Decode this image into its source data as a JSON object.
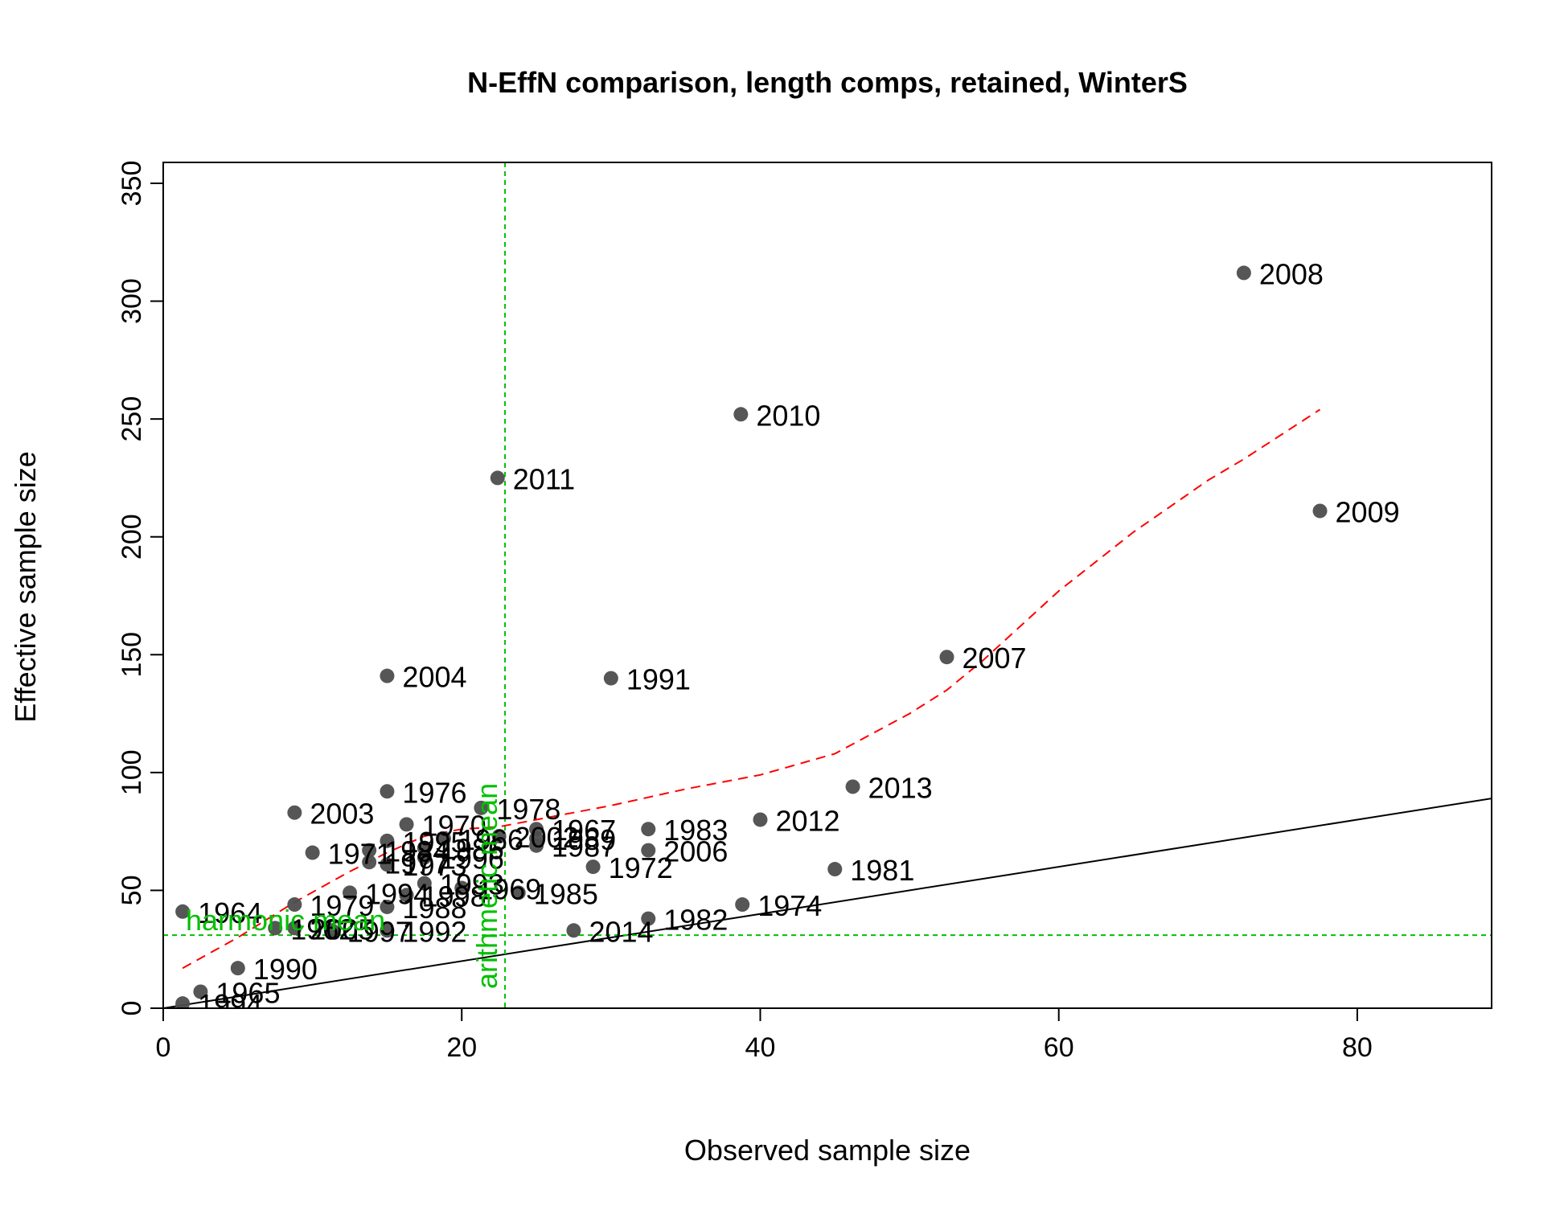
{
  "chart_data": {
    "type": "scatter",
    "title": "N-EffN comparison, length comps, retained, WinterS",
    "xlabel": "Observed sample size",
    "ylabel": "Effective sample size",
    "xlim": [
      0,
      89
    ],
    "ylim": [
      0,
      350
    ],
    "x_ticks": [
      0,
      20,
      40,
      60,
      80
    ],
    "y_ticks": [
      0,
      50,
      100,
      150,
      200,
      250,
      300,
      350
    ],
    "colors": {
      "points": "#4d4d4d",
      "loess": "#ff0000",
      "identity": "#000000",
      "means": "#00c000"
    },
    "points": [
      {
        "label": "2008",
        "x": 72.4,
        "y": 312
      },
      {
        "label": "2010",
        "x": 38.7,
        "y": 252
      },
      {
        "label": "2011",
        "x": 22.4,
        "y": 225
      },
      {
        "label": "2009",
        "x": 77.5,
        "y": 211
      },
      {
        "label": "2007",
        "x": 52.5,
        "y": 149
      },
      {
        "label": "2004",
        "x": 15.0,
        "y": 141
      },
      {
        "label": "1991",
        "x": 30.0,
        "y": 140
      },
      {
        "label": "2013",
        "x": 46.2,
        "y": 94
      },
      {
        "label": "1976",
        "x": 15.0,
        "y": 92
      },
      {
        "label": "1978",
        "x": 21.3,
        "y": 85
      },
      {
        "label": "2003",
        "x": 8.8,
        "y": 83
      },
      {
        "label": "2012",
        "x": 40.0,
        "y": 80
      },
      {
        "label": "1970",
        "x": 16.3,
        "y": 78
      },
      {
        "label": "1983",
        "x": 32.5,
        "y": 76
      },
      {
        "label": "1967",
        "x": 25.0,
        "y": 76
      },
      {
        "label": "2002",
        "x": 22.5,
        "y": 73
      },
      {
        "label": "1989",
        "x": 25.0,
        "y": 72
      },
      {
        "label": "1966",
        "x": 18.8,
        "y": 72
      },
      {
        "label": "1995",
        "x": 15.0,
        "y": 71
      },
      {
        "label": "1987",
        "x": 25.0,
        "y": 69
      },
      {
        "label": "1986",
        "x": 17.5,
        "y": 68
      },
      {
        "label": "1984",
        "x": 13.8,
        "y": 67
      },
      {
        "label": "2006",
        "x": 32.5,
        "y": 67
      },
      {
        "label": "1971",
        "x": 10.0,
        "y": 66
      },
      {
        "label": "1996",
        "x": 17.5,
        "y": 64
      },
      {
        "label": "1977",
        "x": 13.8,
        "y": 62
      },
      {
        "label": "1973",
        "x": 15.0,
        "y": 61
      },
      {
        "label": "1972",
        "x": 28.8,
        "y": 60
      },
      {
        "label": "1981",
        "x": 45.0,
        "y": 59
      },
      {
        "label": "1993",
        "x": 17.5,
        "y": 53
      },
      {
        "label": "1969",
        "x": 20.0,
        "y": 51
      },
      {
        "label": "1985",
        "x": 23.8,
        "y": 49
      },
      {
        "label": "1994",
        "x": 12.5,
        "y": 49
      },
      {
        "label": "1998",
        "x": 16.3,
        "y": 48
      },
      {
        "label": "1974",
        "x": 38.8,
        "y": 44
      },
      {
        "label": "1979",
        "x": 8.8,
        "y": 44
      },
      {
        "label": "1988",
        "x": 15.0,
        "y": 43
      },
      {
        "label": "1964",
        "x": 1.3,
        "y": 41
      },
      {
        "label": "1982",
        "x": 32.5,
        "y": 38
      },
      {
        "label": "1962",
        "x": 7.5,
        "y": 34
      },
      {
        "label": "2005",
        "x": 8.8,
        "y": 34
      },
      {
        "label": "1997",
        "x": 11.3,
        "y": 33
      },
      {
        "label": "1992",
        "x": 15.0,
        "y": 33
      },
      {
        "label": "2014",
        "x": 27.5,
        "y": 33
      },
      {
        "label": "1990",
        "x": 5.0,
        "y": 17
      },
      {
        "label": "1965",
        "x": 2.5,
        "y": 7
      },
      {
        "label": "1994",
        "x": 1.3,
        "y": 2
      }
    ],
    "loess": [
      {
        "x": 1.3,
        "y": 17
      },
      {
        "x": 5,
        "y": 30
      },
      {
        "x": 8.8,
        "y": 45
      },
      {
        "x": 12.5,
        "y": 58
      },
      {
        "x": 15,
        "y": 66
      },
      {
        "x": 17.5,
        "y": 73
      },
      {
        "x": 20,
        "y": 76
      },
      {
        "x": 22.5,
        "y": 77
      },
      {
        "x": 25,
        "y": 80
      },
      {
        "x": 30,
        "y": 86
      },
      {
        "x": 35,
        "y": 93
      },
      {
        "x": 40,
        "y": 99
      },
      {
        "x": 45,
        "y": 108
      },
      {
        "x": 50,
        "y": 125
      },
      {
        "x": 52.5,
        "y": 135
      },
      {
        "x": 55,
        "y": 148
      },
      {
        "x": 60,
        "y": 177
      },
      {
        "x": 65,
        "y": 202
      },
      {
        "x": 70,
        "y": 224
      },
      {
        "x": 72.4,
        "y": 233
      },
      {
        "x": 77.5,
        "y": 254
      }
    ],
    "identity_line": {
      "from": [
        0,
        0
      ],
      "to": [
        89,
        89
      ]
    },
    "harmonic_mean": {
      "label": "harmonic mean",
      "value": 31
    },
    "arithmetic_mean": {
      "label": "arithmetic mean",
      "value": 22.9
    }
  }
}
